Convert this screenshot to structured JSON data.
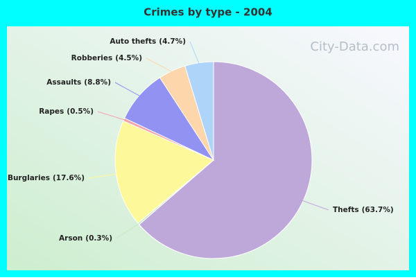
{
  "chart_data": {
    "type": "pie",
    "title": "Crimes by type - 2004",
    "watermark": "City-Data.com",
    "categories": [
      "Thefts",
      "Arson",
      "Burglaries",
      "Rapes",
      "Assaults",
      "Robberies",
      "Auto thefts"
    ],
    "values": [
      63.7,
      0.3,
      17.6,
      0.5,
      8.8,
      4.5,
      4.7
    ],
    "value_labels": [
      "(63.7%)",
      "(0.3%)",
      "(17.6%)",
      "(0.5%)",
      "(8.8%)",
      "(4.5%)",
      "(4.7%)"
    ],
    "colors": [
      "#bea8d9",
      "#c9e8c4",
      "#fdf99a",
      "#f4a3ad",
      "#9192f1",
      "#fdd6ab",
      "#aed4fa"
    ]
  }
}
